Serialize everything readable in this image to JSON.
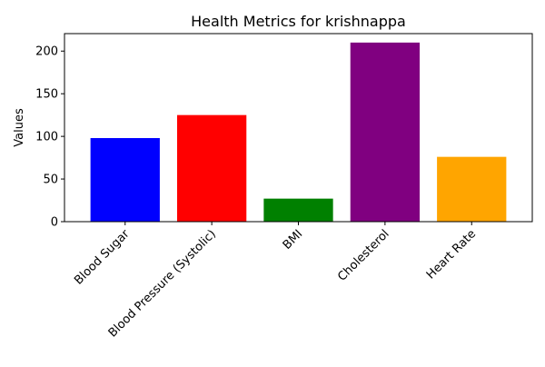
{
  "chart_data": {
    "type": "bar",
    "title": "Health Metrics for krishnappa",
    "xlabel": "",
    "ylabel": "Values",
    "categories": [
      "Blood Sugar",
      "Blood Pressure (Systolic)",
      "BMI",
      "Cholesterol",
      "Heart Rate"
    ],
    "values": [
      98,
      125,
      27,
      210,
      76
    ],
    "colors": [
      "#0000ff",
      "#ff0000",
      "#008000",
      "#800080",
      "#ffa500"
    ],
    "ylim": [
      0,
      220.5
    ],
    "yticks": [
      0,
      50,
      100,
      150,
      200
    ],
    "ytick_labels": [
      "0",
      "50",
      "100",
      "150",
      "200"
    ],
    "xtick_rotation": 45,
    "grid": false,
    "legend": "none"
  }
}
